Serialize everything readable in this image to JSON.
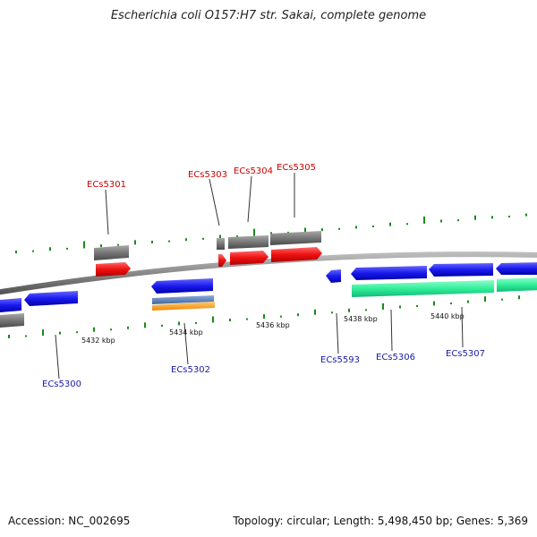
{
  "title": "Escherichia coli O157:H7 str. Sakai, complete genome",
  "footer": {
    "accession": "Accession: NC_002695",
    "info": "Topology: circular; Length: 5,498,450 bp; Genes: 5,369"
  },
  "colors": {
    "forward_cds": "#ee1111",
    "reverse_cds": "#1a1aee",
    "gene": "#777777",
    "rna_teal": "#33ee99",
    "backbone": "#888888",
    "gc_ticks": "#1a8a1a",
    "forward_label": "#cc0000",
    "reverse_label": "#1a1aaa",
    "orange_feature": "#ff9922",
    "steel_feature": "#5577aa"
  },
  "scale_labels": [
    "5432 kbp",
    "5434 kbp",
    "5436 kbp",
    "5438 kbp",
    "5440 kbp"
  ],
  "forward_labels": [
    "ECs5301",
    "ECs5303",
    "ECs5304",
    "ECs5305"
  ],
  "reverse_labels": [
    "ECs5300",
    "ECs5302",
    "ECs5593",
    "ECs5306",
    "ECs5307"
  ]
}
